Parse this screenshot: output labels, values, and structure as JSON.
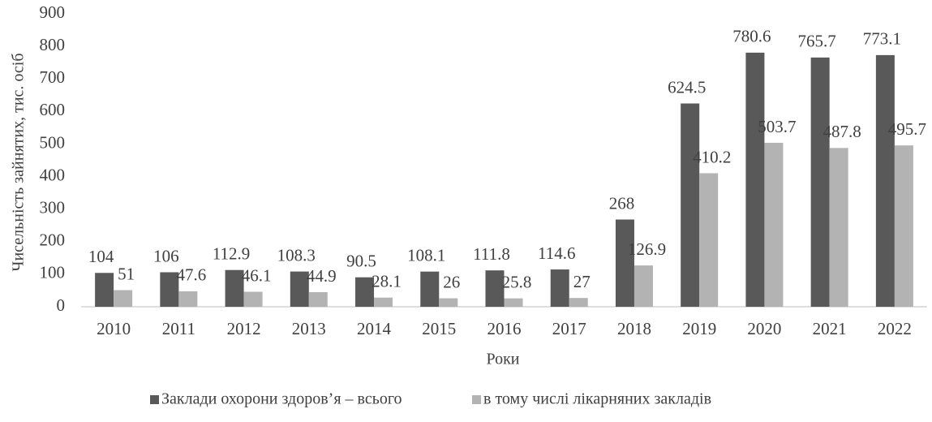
{
  "chart_data": {
    "type": "bar",
    "x_label": "Роки",
    "y_label": "Чисельність зайнятих, тис. осіб",
    "categories": [
      "2010",
      "2011",
      "2012",
      "2013",
      "2014",
      "2015",
      "2016",
      "2017",
      "2018",
      "2019",
      "2020",
      "2021",
      "2022"
    ],
    "series": [
      {
        "name": "Заклади охорони здоров’я  – всього",
        "color": "#595959",
        "values": [
          104,
          106,
          112.9,
          108.3,
          90.5,
          108.1,
          111.8,
          114.6,
          268,
          624.5,
          780.6,
          765.7,
          773.1
        ]
      },
      {
        "name": "в тому числі  лікарняних закладів",
        "color": "#b3b3b3",
        "values": [
          51,
          47.6,
          46.1,
          44.9,
          28.1,
          26,
          25.8,
          27,
          126.9,
          410.2,
          503.7,
          487.8,
          495.7
        ]
      }
    ],
    "ylim": [
      0,
      900
    ],
    "yticks": [
      0,
      100,
      200,
      300,
      400,
      500,
      600,
      700,
      800,
      900
    ],
    "grid": false,
    "legend": "bottom"
  }
}
